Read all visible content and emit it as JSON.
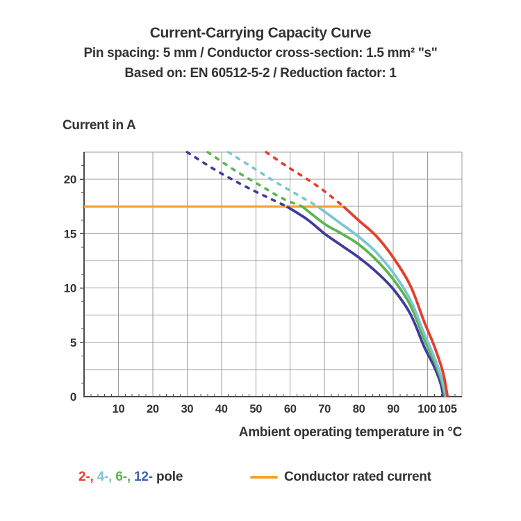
{
  "header": {
    "title": "Current-Carrying Capacity Curve",
    "subtitle": "Pin spacing: 5 mm / Conductor cross-section: 1.5 mm² \"s\"",
    "standard": "Based on: EN 60512-5-2 / Reduction factor: 1"
  },
  "chart_data": {
    "type": "line",
    "title": "Current-Carrying Capacity Curve",
    "ylabel": "Current in A",
    "xlabel": "Ambient operating temperature in °C",
    "xlim": [
      0,
      110
    ],
    "ylim": [
      0,
      22.5
    ],
    "x_ticks": [
      10,
      20,
      30,
      40,
      50,
      60,
      70,
      80,
      90,
      100,
      105
    ],
    "y_ticks": [
      0,
      5,
      10,
      15,
      20
    ],
    "x_grid_step": 10,
    "y_grid_step": 2.5,
    "x_minor_tick_step": 2,
    "y_minor_tick_step": 1.25,
    "grid": true,
    "legend_position": "bottom",
    "colors": {
      "grid": "#9b9b9b",
      "axis": "#4b4b4b",
      "text": "#323232"
    },
    "rated_current": {
      "label": "Conductor rated current",
      "value_amps": 17.5,
      "x_start": 0,
      "x_end": 75.5,
      "color": "#f7a233"
    },
    "series": [
      {
        "name": "12-pole",
        "color": "#3d3c9c",
        "dashed": [
          [
            30,
            22.5
          ],
          [
            38,
            20.9
          ],
          [
            46,
            19.5
          ],
          [
            53,
            18.4
          ],
          [
            59,
            17.5
          ]
        ],
        "solid": [
          [
            59,
            17.5
          ],
          [
            65,
            16.3
          ],
          [
            70,
            15.0
          ],
          [
            75,
            13.9
          ],
          [
            80,
            12.8
          ],
          [
            85,
            11.5
          ],
          [
            90,
            9.9
          ],
          [
            95,
            7.6
          ],
          [
            99,
            4.6
          ],
          [
            102,
            2.7
          ],
          [
            103.8,
            1.2
          ],
          [
            104.6,
            0
          ]
        ]
      },
      {
        "name": "6-pole",
        "color": "#5cb54e",
        "dashed": [
          [
            36,
            22.5
          ],
          [
            44,
            20.8
          ],
          [
            52,
            19.3
          ],
          [
            58,
            18.2
          ],
          [
            63.5,
            17.5
          ]
        ],
        "solid": [
          [
            63.5,
            17.5
          ],
          [
            70,
            15.9
          ],
          [
            75,
            15.0
          ],
          [
            80,
            14.0
          ],
          [
            85,
            12.6
          ],
          [
            90,
            10.8
          ],
          [
            95,
            8.4
          ],
          [
            99,
            5.3
          ],
          [
            102,
            3.2
          ],
          [
            104,
            1.5
          ],
          [
            105.1,
            0
          ]
        ]
      },
      {
        "name": "4-pole",
        "color": "#7cc5d4",
        "dashed": [
          [
            42,
            22.5
          ],
          [
            49,
            21.1
          ],
          [
            56,
            19.7
          ],
          [
            62,
            18.6
          ],
          [
            68,
            17.5
          ]
        ],
        "solid": [
          [
            68,
            17.5
          ],
          [
            74,
            16.1
          ],
          [
            80,
            14.7
          ],
          [
            85,
            13.3
          ],
          [
            90,
            11.4
          ],
          [
            95,
            8.9
          ],
          [
            99,
            5.8
          ],
          [
            102,
            3.6
          ],
          [
            104.2,
            1.6
          ],
          [
            105.4,
            0
          ]
        ]
      },
      {
        "name": "2-pole",
        "color": "#e73c2e",
        "dashed": [
          [
            53,
            22.5
          ],
          [
            59,
            21.2
          ],
          [
            65,
            20.0
          ],
          [
            70,
            18.9
          ],
          [
            75.5,
            17.5
          ]
        ],
        "solid": [
          [
            75.5,
            17.5
          ],
          [
            80,
            16.2
          ],
          [
            85,
            14.8
          ],
          [
            90,
            12.8
          ],
          [
            95,
            10.2
          ],
          [
            99,
            6.9
          ],
          [
            102,
            4.6
          ],
          [
            104.5,
            2.2
          ],
          [
            105.8,
            0
          ]
        ]
      }
    ]
  },
  "legend": {
    "poles": [
      {
        "label": "2-",
        "color": "#e73c2e"
      },
      {
        "label": "4-",
        "color": "#7cc5d4"
      },
      {
        "label": "6-",
        "color": "#5cb54e"
      },
      {
        "label": "12-",
        "color": "#3a64b4"
      }
    ],
    "pole_suffix": "pole",
    "rated_label": "Conductor rated current",
    "rated_color": "#f7a233"
  }
}
